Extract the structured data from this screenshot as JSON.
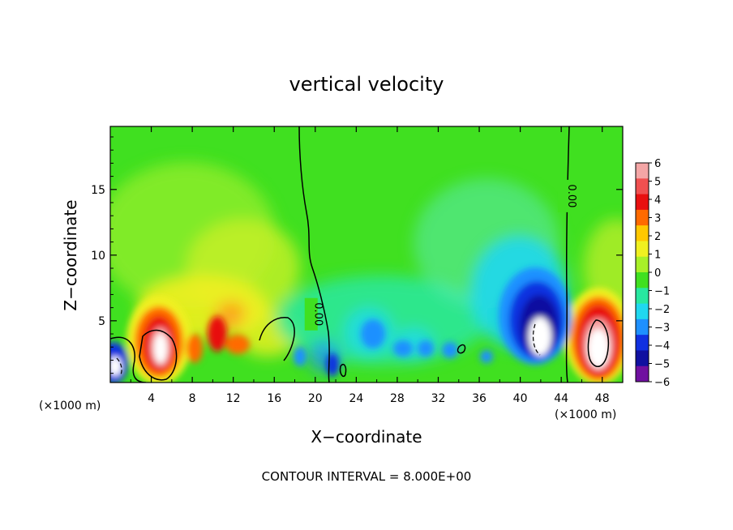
{
  "chart_data": {
    "type": "heatmap",
    "title": "vertical velocity",
    "xlabel": "X−coordinate",
    "ylabel": "Z−coordinate",
    "x_unit_left": "(×1000 m)",
    "x_unit_right": "(×1000 m)",
    "xlim": [
      0,
      50
    ],
    "ylim": [
      0.3,
      19.8
    ],
    "x_ticks": [
      4,
      8,
      12,
      16,
      20,
      24,
      28,
      32,
      36,
      40,
      44,
      48
    ],
    "y_ticks": [
      5,
      10,
      15
    ],
    "colorbar": {
      "levels": [
        6,
        5,
        4,
        3,
        2,
        1,
        0,
        -1,
        -2,
        -3,
        -4,
        -5,
        -6
      ],
      "labels": [
        "6",
        "5",
        "4",
        "3",
        "2",
        "1",
        "0",
        "−1",
        "−2",
        "−3",
        "−4",
        "−5",
        "−6"
      ],
      "colors": [
        "#f4a6a6",
        "#f05050",
        "#e81010",
        "#ff6a00",
        "#ffc800",
        "#f0f020",
        "#a8f028",
        "#40e020",
        "#28e8a0",
        "#20d8f0",
        "#1e90ff",
        "#1030e0",
        "#1010a0",
        "#7010a0"
      ]
    },
    "contour_labels": [
      {
        "text": "0.00",
        "x": 19.6,
        "z": 5.5
      },
      {
        "text": "0.00",
        "x": 44.3,
        "z": 14.5
      }
    ],
    "features": [
      {
        "kind": "updraft",
        "x": 5.2,
        "z": 3.2,
        "peak": 7
      },
      {
        "kind": "updraft",
        "x": 47.5,
        "z": 3.0,
        "peak": 7
      },
      {
        "kind": "downdraft",
        "x": 41.3,
        "z": 3.6,
        "peak": -7
      },
      {
        "kind": "downdraft",
        "x": 0.8,
        "z": 1.5,
        "peak": -6
      }
    ],
    "footer": "CONTOUR INTERVAL = 8.000E+00"
  }
}
